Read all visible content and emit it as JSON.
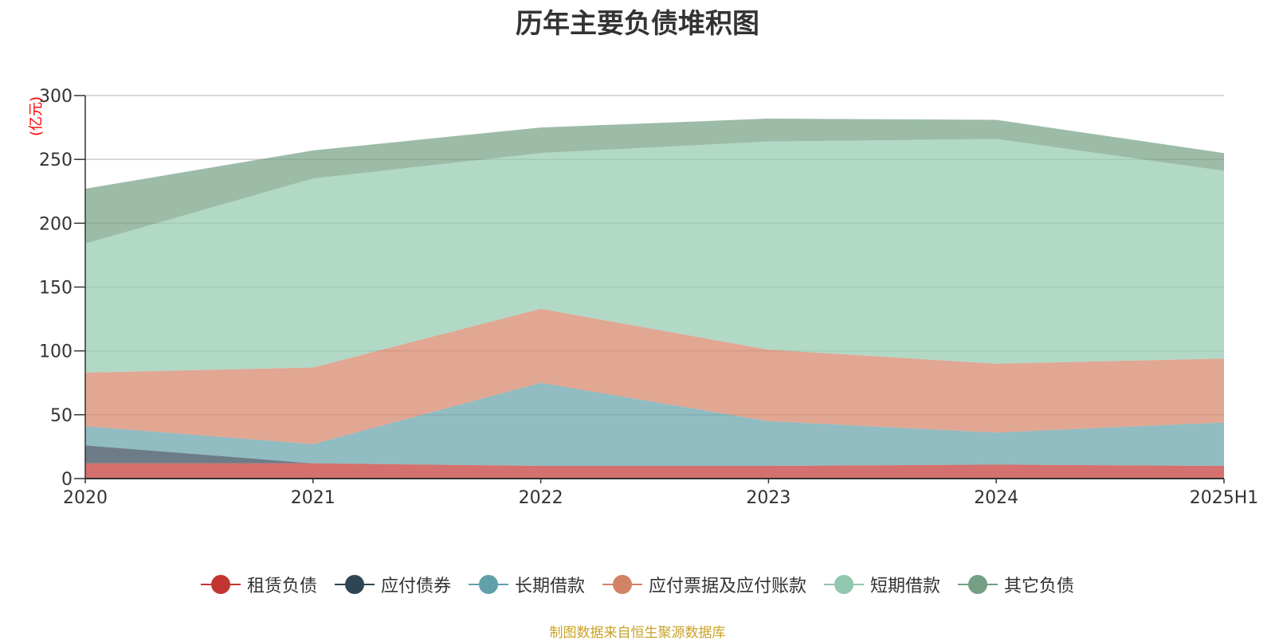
{
  "chart_data": {
    "type": "area",
    "stacked": true,
    "title": "历年主要负债堆积图",
    "ylabel": "(亿元)",
    "xlabel": "",
    "ylim": [
      0,
      300
    ],
    "yticks": [
      0,
      50,
      100,
      150,
      200,
      250,
      300
    ],
    "categories": [
      "2020",
      "2021",
      "2022",
      "2023",
      "2024",
      "2025H1"
    ],
    "series": [
      {
        "name": "租赁负债",
        "color": "#c23531",
        "values": [
          12,
          12,
          10,
          10,
          11,
          10
        ]
      },
      {
        "name": "应付债券",
        "color": "#2f4554",
        "values": [
          14,
          0,
          0,
          0,
          0,
          0
        ]
      },
      {
        "name": "长期借款",
        "color": "#61a0a8",
        "values": [
          15,
          15,
          65,
          35,
          25,
          34
        ]
      },
      {
        "name": "应付票据及应付账款",
        "color": "#d48265",
        "values": [
          42,
          60,
          58,
          56,
          54,
          50
        ]
      },
      {
        "name": "短期借款",
        "color": "#91c7ae",
        "values": [
          101,
          148,
          122,
          163,
          176,
          147
        ]
      },
      {
        "name": "其它负债",
        "color": "#749f83",
        "values": [
          43,
          22,
          20,
          18,
          15,
          14
        ]
      }
    ],
    "grid": true,
    "legend_position": "bottom"
  },
  "source_note": "制图数据来自恒生聚源数据库"
}
